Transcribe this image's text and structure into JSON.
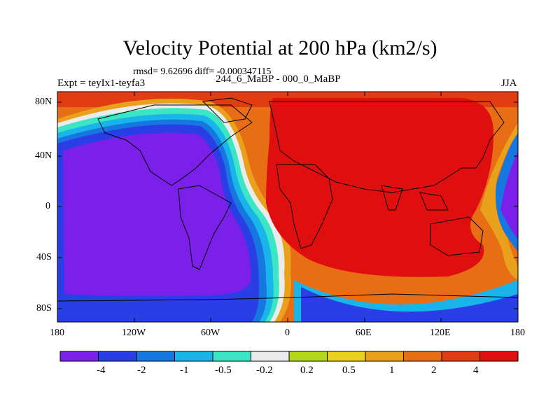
{
  "title": "Velocity Potential at 200 hPa (km2/s)",
  "stats": "rmsd= 9.62696 diff= -0.000347115",
  "left_label": "Expt = teyIx1-teyfa3",
  "center_label": "244_6_MaBP - 000_0_MaBP",
  "right_label": "JJA",
  "lat_ticks": [
    "80N",
    "40N",
    "0",
    "40S",
    "80S"
  ],
  "lon_ticks": [
    "180",
    "120W",
    "60W",
    "0",
    "60E",
    "120E",
    "180"
  ],
  "colorbar": {
    "colors": [
      "#7b20e8",
      "#2a3ee6",
      "#1677e0",
      "#19b5ea",
      "#3ae6c4",
      "#ebebeb",
      "#b3d81a",
      "#ead21c",
      "#e9a01a",
      "#e86e16",
      "#e23c12",
      "#e00f0f"
    ],
    "labels": [
      "-4",
      "-2",
      "-1",
      "-0.5",
      "-0.2",
      "0.2",
      "0.5",
      "1",
      "2",
      "4"
    ]
  },
  "map_colors": {
    "ocean_high": "#e86e16",
    "land_high": "#e00f0f",
    "low_core": "#7b20e8",
    "low_outer": "#2a3ee6"
  }
}
